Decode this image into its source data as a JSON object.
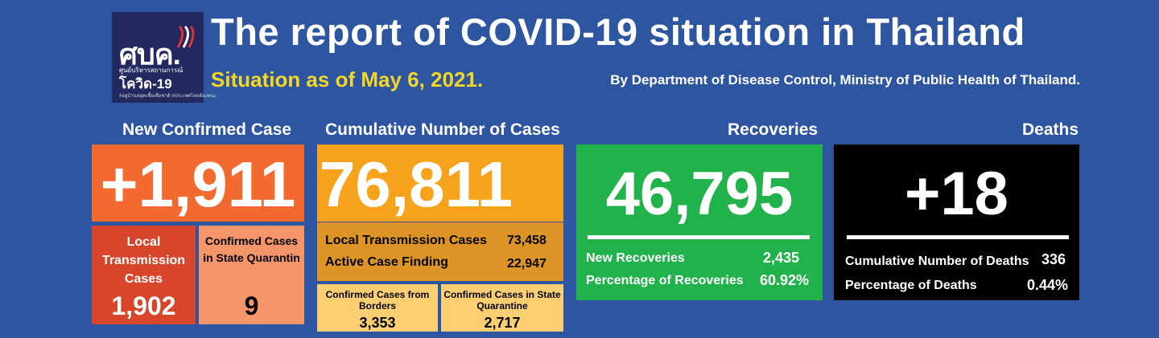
{
  "logo": {
    "abbr": "ศบค.",
    "sub": "ศูนย์บริหารสถานการณ์",
    "name": "โควิด-19",
    "tag": "#อยู่บ้านหยุดเชื้อเพื่อชาติ #ประเทศไทยต้องชนะ"
  },
  "header": {
    "title": "The report of COVID-19 situation in Thailand",
    "subtitle": "Situation as of May 6, 2021.",
    "byline": "By Department of Disease Control, Ministry of Public Health of Thailand."
  },
  "new_cases": {
    "heading": "New Confirmed Case",
    "value": "+1,911",
    "local_label": "Local Transmission Cases",
    "local_value": "1,902",
    "quarantine_label": "Confirmed Cases in State Quarantin",
    "quarantine_value": "9"
  },
  "cumulative": {
    "heading": "Cumulative Number of Cases",
    "value": "76,811",
    "local_label": "Local Transmission Cases",
    "local_value": "73,458",
    "active_label": "Active Case Finding",
    "active_value": "22,947",
    "borders_label": "Confirmed Cases from Borders",
    "borders_value": "3,353",
    "quarantine_label": "Confirmed Cases in State Quarantine",
    "quarantine_value": "2,717"
  },
  "recoveries": {
    "heading": "Recoveries",
    "value": "46,795",
    "new_label": "New Recoveries",
    "new_value": "2,435",
    "pct_label": "Percentage of Recoveries",
    "pct_value": "60.92%"
  },
  "deaths": {
    "heading": "Deaths",
    "value": "+18",
    "cum_label": "Cumulative Number of Deaths",
    "cum_value": "336",
    "pct_label": "Percentage of Deaths",
    "pct_value": "0.44%"
  },
  "colors": {
    "background": "#2e55a0",
    "new_case": "#f26a30",
    "local_box": "#d7462a",
    "quarantine_box": "#f5956a",
    "cumulative": "#f6a21c",
    "cumulative_detail": "#dd9427",
    "light_box": "#fdcf72",
    "recoveries": "#21b24b",
    "deaths": "#000000",
    "title_yellow": "#f3d62a"
  }
}
